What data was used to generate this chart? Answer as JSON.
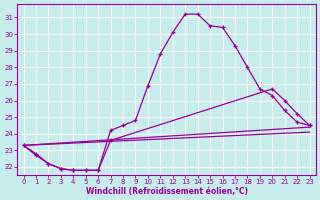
{
  "xlabel": "Windchill (Refroidissement éolien,°C)",
  "background_color": "#c8ecec",
  "grid_color": "#b0d8d8",
  "line_color": "#990099",
  "hours": [
    0,
    1,
    2,
    3,
    4,
    5,
    6,
    7,
    8,
    9,
    10,
    11,
    12,
    13,
    14,
    15,
    16,
    17,
    18,
    19,
    20,
    21,
    22,
    23
  ],
  "curve1": [
    23.3,
    22.8,
    22.2,
    21.9,
    21.8,
    21.8,
    21.8,
    24.2,
    24.5,
    24.8,
    26.9,
    28.8,
    30.1,
    31.2,
    31.2,
    30.5,
    30.4,
    29.3,
    28.0,
    26.7,
    26.3,
    25.4,
    24.7,
    24.5
  ],
  "curve2_x": [
    0,
    1,
    2,
    3,
    4,
    5,
    6,
    7,
    20,
    21,
    22,
    23
  ],
  "curve2_y": [
    23.3,
    22.7,
    22.2,
    21.9,
    21.8,
    21.8,
    21.8,
    23.6,
    26.7,
    26.0,
    25.2,
    24.5
  ],
  "curve3_x": [
    0,
    23
  ],
  "curve3_y": [
    23.3,
    24.4
  ],
  "curve4_x": [
    0,
    23
  ],
  "curve4_y": [
    23.3,
    24.1
  ],
  "ylim": [
    21.5,
    31.8
  ],
  "xlim": [
    -0.5,
    23.5
  ],
  "yticks": [
    22,
    23,
    24,
    25,
    26,
    27,
    28,
    29,
    30,
    31
  ],
  "xticks": [
    0,
    1,
    2,
    3,
    4,
    5,
    6,
    7,
    8,
    9,
    10,
    11,
    12,
    13,
    14,
    15,
    16,
    17,
    18,
    19,
    20,
    21,
    22,
    23
  ]
}
